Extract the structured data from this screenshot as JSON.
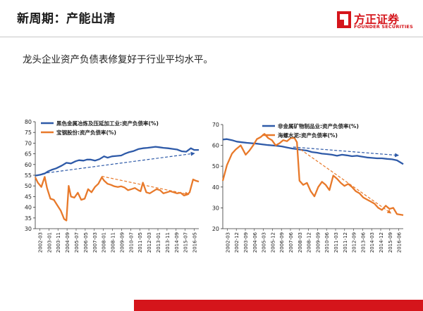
{
  "header": {
    "title": "新周期：产能出清",
    "logo_cn": "方正证券",
    "logo_en": "FOUNDER SECURITIES"
  },
  "subtitle": "龙头企业资产负债表修复好于行业平均水平。",
  "colors": {
    "blue": "#2e5aa8",
    "orange": "#e8792a",
    "red": "#d5151b"
  },
  "chart_data": [
    {
      "type": "line",
      "ylim": [
        30,
        80
      ],
      "yticks": [
        30,
        35,
        40,
        45,
        50,
        55,
        60,
        65,
        70,
        75,
        80
      ],
      "xlabels": [
        "2002-03",
        "2003-01",
        "2003-11",
        "2004-09",
        "2005-07",
        "2006-05",
        "2007-03",
        "2008-01",
        "2008-11",
        "2009-09",
        "2010-07",
        "2011-05",
        "2012-03",
        "2013-01",
        "2013-11",
        "2014-09",
        "2015-07",
        "2016-05"
      ],
      "x_range": [
        2002.17,
        2016.5
      ],
      "grid": false,
      "legend_position": "top-left",
      "series": [
        {
          "name": "黑色金属冶炼及压延加工业:资产负债率(%)",
          "color": "#2e5aa8",
          "x": [
            2002.17,
            2002.6,
            2003.0,
            2003.3,
            2003.6,
            2004.0,
            2004.5,
            2004.9,
            2005.3,
            2005.7,
            2006.0,
            2006.4,
            2006.7,
            2007.0,
            2007.4,
            2007.8,
            2008.2,
            2008.5,
            2008.9,
            2009.3,
            2009.7,
            2010.0,
            2010.4,
            2010.8,
            2011.2,
            2011.6,
            2012.0,
            2012.3,
            2012.7,
            2013.0,
            2013.4,
            2013.8,
            2014.2,
            2014.6,
            2015.0,
            2015.4,
            2015.8,
            2016.1,
            2016.5
          ],
          "y": [
            54.8,
            55.2,
            55.8,
            56.8,
            57.5,
            58.2,
            59.5,
            60.8,
            60.5,
            61.5,
            62.0,
            61.8,
            62.3,
            62.3,
            61.8,
            62.5,
            63.8,
            63.2,
            63.8,
            64.0,
            64.2,
            65.0,
            65.8,
            66.3,
            67.2,
            67.6,
            67.8,
            68.0,
            68.3,
            68.1,
            67.8,
            67.6,
            67.3,
            67.0,
            66.2,
            66.0,
            67.6,
            66.8,
            66.8
          ]
        },
        {
          "name": "宝钢股份:资产负债率(%)",
          "color": "#e8792a",
          "x": [
            2002.17,
            2002.4,
            2002.7,
            2003.0,
            2003.2,
            2003.5,
            2003.8,
            2004.1,
            2004.4,
            2004.7,
            2004.9,
            2005.1,
            2005.3,
            2005.6,
            2005.9,
            2006.2,
            2006.5,
            2006.8,
            2007.1,
            2007.4,
            2007.7,
            2008.0,
            2008.2,
            2008.5,
            2008.8,
            2009.1,
            2009.4,
            2009.7,
            2010.0,
            2010.3,
            2010.6,
            2010.9,
            2011.2,
            2011.4,
            2011.6,
            2011.9,
            2012.2,
            2012.5,
            2012.8,
            2013.1,
            2013.4,
            2013.7,
            2014.0,
            2014.3,
            2014.6,
            2014.9,
            2015.2,
            2015.5,
            2015.7,
            2016.0,
            2016.2,
            2016.5
          ],
          "y": [
            54.0,
            51.5,
            49.5,
            54.2,
            49.0,
            44.0,
            43.5,
            41.0,
            38.5,
            34.5,
            33.8,
            50.0,
            45.0,
            44.5,
            46.8,
            43.5,
            44.0,
            48.5,
            47.0,
            49.5,
            51.0,
            54.0,
            52.5,
            51.0,
            50.5,
            49.8,
            49.5,
            49.8,
            49.2,
            48.0,
            48.5,
            49.0,
            48.0,
            47.5,
            51.5,
            47.0,
            46.5,
            47.5,
            48.5,
            48.0,
            46.5,
            47.0,
            47.5,
            47.0,
            46.5,
            46.8,
            45.5,
            46.0,
            47.0,
            53.0,
            52.5,
            52.0
          ]
        }
      ],
      "trend_lines": [
        {
          "color": "#2e5aa8",
          "x": [
            2002.8,
            2016.1
          ],
          "y": [
            55.8,
            65.2
          ]
        },
        {
          "color": "#e8792a",
          "x": [
            2008.0,
            2015.6
          ],
          "y": [
            54.5,
            46.0
          ]
        }
      ]
    },
    {
      "type": "line",
      "ylim": [
        20,
        70
      ],
      "yticks": [
        20,
        30,
        40,
        50,
        60,
        70
      ],
      "xlabels": [
        "2002-03",
        "2002-12",
        "2003-09",
        "2004-06",
        "2005-03",
        "2005-12",
        "2006-09",
        "2007-06",
        "2008-03",
        "2008-12",
        "2009-09",
        "2010-06",
        "2011-03",
        "2011-12",
        "2012-09",
        "2013-06",
        "2014-03",
        "2014-12",
        "2015-09",
        "2016-06"
      ],
      "x_range": [
        2002.17,
        2016.6
      ],
      "grid": false,
      "legend_position": "top-left",
      "series": [
        {
          "name": "非金属矿物制品业:资产负债率(%)",
          "color": "#2e5aa8",
          "x": [
            2002.17,
            2002.5,
            2002.9,
            2003.3,
            2003.7,
            2004.1,
            2004.5,
            2004.9,
            2005.3,
            2005.7,
            2006.1,
            2006.5,
            2006.9,
            2007.3,
            2007.7,
            2008.1,
            2008.5,
            2008.9,
            2009.3,
            2009.7,
            2010.1,
            2010.5,
            2010.9,
            2011.3,
            2011.7,
            2012.1,
            2012.5,
            2012.9,
            2013.3,
            2013.7,
            2014.1,
            2014.5,
            2014.9,
            2015.3,
            2015.7,
            2016.1,
            2016.6
          ],
          "y": [
            62.8,
            63.0,
            62.5,
            61.8,
            61.5,
            61.2,
            61.0,
            60.8,
            60.5,
            60.2,
            60.0,
            59.8,
            59.5,
            59.0,
            58.5,
            58.2,
            57.8,
            57.5,
            56.8,
            56.5,
            56.0,
            55.8,
            55.5,
            55.0,
            55.5,
            55.2,
            54.8,
            55.0,
            54.6,
            54.2,
            54.0,
            53.8,
            53.8,
            53.5,
            53.3,
            52.8,
            51.0
          ]
        },
        {
          "name": "海螺水泥:资产负债率(%)",
          "color": "#e8792a",
          "x": [
            2002.17,
            2002.5,
            2002.9,
            2003.2,
            2003.6,
            2004.0,
            2004.3,
            2004.6,
            2004.9,
            2005.2,
            2005.5,
            2005.8,
            2006.1,
            2006.4,
            2006.7,
            2007.0,
            2007.3,
            2007.6,
            2007.9,
            2008.1,
            2008.3,
            2008.6,
            2008.9,
            2009.2,
            2009.5,
            2009.8,
            2010.1,
            2010.4,
            2010.7,
            2011.0,
            2011.3,
            2011.6,
            2011.9,
            2012.2,
            2012.5,
            2012.8,
            2013.1,
            2013.4,
            2013.7,
            2014.0,
            2014.3,
            2014.6,
            2014.9,
            2015.2,
            2015.5,
            2015.8,
            2016.1,
            2016.6
          ],
          "y": [
            43.0,
            50.5,
            56.0,
            58.0,
            60.0,
            55.5,
            57.5,
            60.0,
            63.0,
            64.0,
            65.5,
            63.5,
            62.5,
            60.0,
            61.0,
            62.5,
            62.0,
            63.5,
            63.5,
            61.5,
            43.0,
            41.0,
            42.0,
            38.0,
            35.5,
            40.0,
            42.5,
            41.0,
            38.5,
            45.5,
            44.0,
            42.0,
            40.5,
            41.5,
            40.0,
            38.0,
            37.0,
            35.0,
            34.0,
            33.0,
            32.0,
            30.0,
            29.0,
            31.0,
            29.5,
            30.0,
            27.0,
            26.5
          ]
        }
      ],
      "trend_lines": [
        {
          "color": "#2e5aa8",
          "x": [
            2007.8,
            2016.2
          ],
          "y": [
            59.2,
            55.2
          ]
        },
        {
          "color": "#e8792a",
          "x": [
            2008.4,
            2015.6
          ],
          "y": [
            58.0,
            27.5
          ]
        }
      ]
    }
  ]
}
